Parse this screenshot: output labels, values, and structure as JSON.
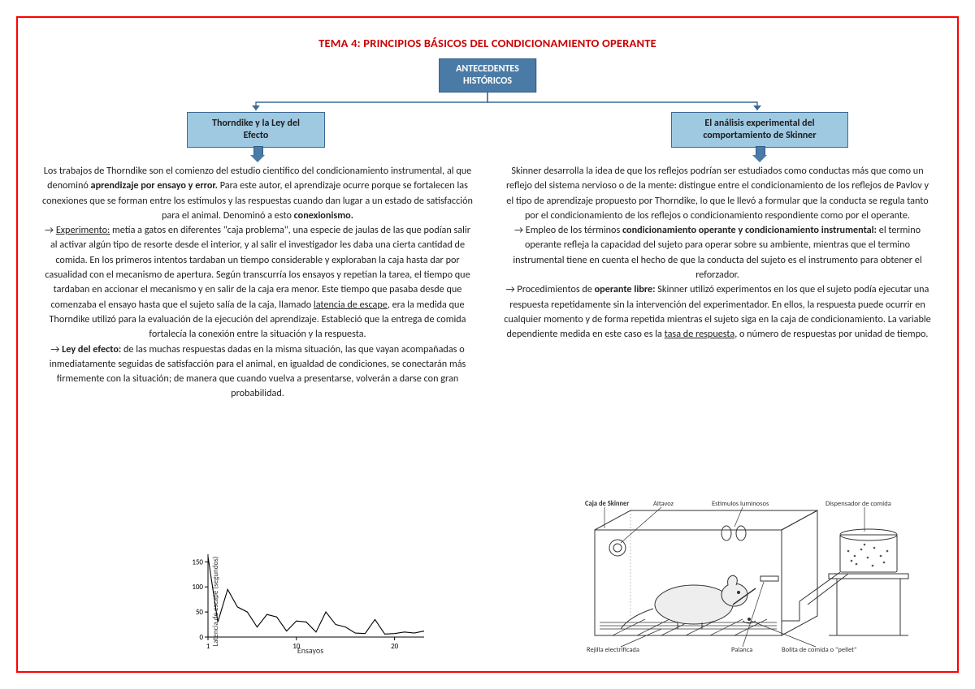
{
  "title": "TEMA 4: PRINCIPIOS BÁSICOS DEL CONDICIONAMIENTO OPERANTE",
  "colors": {
    "page_border": "#ff0000",
    "title": "#cc0000",
    "root_fill": "#4a7ba6",
    "root_border": "#2f5d87",
    "child_fill": "#9fc9e1",
    "child_border": "#3c6a94",
    "connector": "#3c6a94",
    "text": "#222222"
  },
  "diagram": {
    "root_line1": "ANTECEDENTES",
    "root_line2": "HISTÓRICOS",
    "left_line1": "Thorndike y la Ley del",
    "left_line2": "Efecto",
    "right_line1": "El análisis experimental del",
    "right_line2": "comportamiento de Skinner"
  },
  "left": {
    "p1a": "Los trabajos de Thorndike son el comienzo del estudio científico del condicionamiento instrumental, al que denominó ",
    "p1b_bold": "aprendizaje por ensayo y error.",
    "p1c": " Para este autor, el aprendizaje ocurre porque se fortalecen las conexiones que se forman entre los estímulos y las respuestas cuando dan lugar a un estado de satisfacción para el animal. Denominó a esto ",
    "p1d_bold": "conexionismo.",
    "p2_lead": "→ ",
    "p2_label_u": "Experimento:",
    "p2_body": " metía a gatos en diferentes \"caja problema\", una especie de jaulas de las que podían salir al activar algún tipo de resorte desde el interior, y al salir el investigador les daba una cierta cantidad de comida. En los primeros intentos tardaban un tiempo considerable y exploraban la caja hasta dar por casualidad con el mecanismo de apertura. Según transcurría los ensayos y repetían la tarea, el tiempo que tardaban en accionar el mecanismo y en salir de la caja era menor. Este tiempo que pasaba desde que comenzaba el ensayo hasta que el sujeto salía de la caja, llamado ",
    "p2_u2": "latencia de escape",
    "p2_tail": ", era la medida que Thorndike utilizó para la evaluación de la ejecución del aprendizaje. Estableció que la entrega de comida fortalecía la conexión entre la situación y la respuesta.",
    "p3_lead": "→ ",
    "p3_bold": "Ley del efecto:",
    "p3_body": " de las muchas respuestas dadas en la misma situación, las que vayan acompañadas o inmediatamente seguidas de satisfacción para el animal, en igualdad de condiciones, se conectarán más firmemente con la situación; de manera que cuando vuelva a presentarse, volverán a darse con gran probabilidad."
  },
  "right": {
    "p1": "Skinner desarrolla la idea de que los reflejos podrían ser estudiados como conductas más que como un reflejo del sistema nervioso o de la mente: distingue entre el condicionamiento de los reflejos de Pavlov y el tipo de aprendizaje propuesto por Thorndike, lo que le llevó a formular que la conducta se regula tanto por el condicionamiento de los reflejos o condicionamiento respondiente como por el operante.",
    "p2_lead": "→ Empleo de los términos ",
    "p2_bold": "condicionamiento operante y condicionamiento instrumental:",
    "p2_body": " el termino operante refleja la capacidad del sujeto para operar sobre su ambiente, mientras que el termino instrumental tiene en cuenta el hecho de que la conducta del sujeto es el instrumento para obtener el reforzador.",
    "p3_lead": "→ Procedimientos de ",
    "p3_bold": "operante libre:",
    "p3_body": " Skinner utilizó experimentos en los que el sujeto podía ejecutar una respuesta repetidamente sin la intervención del experimentador. En ellos, la respuesta puede ocurrir en cualquier momento y de forma repetida mientras el sujeto siga en la caja de condicionamiento. La variable dependiente medida en este caso es la ",
    "p3_u": "tasa de respuesta",
    "p3_tail": ", o número de respuestas por unidad de tiempo."
  },
  "chart": {
    "type": "line",
    "ylabel": "Latencia de escape (segundos)",
    "xlabel": "Ensayos",
    "xlim": [
      1,
      24
    ],
    "ylim": [
      0,
      165
    ],
    "yticks": [
      0,
      50,
      100,
      150
    ],
    "xticks": [
      1,
      10,
      20
    ],
    "line_color": "#000000",
    "line_width": 1.1,
    "background": "#ffffff",
    "points": [
      [
        1,
        160
      ],
      [
        2,
        30
      ],
      [
        3,
        95
      ],
      [
        4,
        60
      ],
      [
        5,
        50
      ],
      [
        6,
        20
      ],
      [
        7,
        45
      ],
      [
        8,
        40
      ],
      [
        9,
        12
      ],
      [
        10,
        32
      ],
      [
        11,
        30
      ],
      [
        12,
        10
      ],
      [
        13,
        50
      ],
      [
        14,
        25
      ],
      [
        15,
        20
      ],
      [
        16,
        8
      ],
      [
        17,
        7
      ],
      [
        18,
        35
      ],
      [
        19,
        6
      ],
      [
        20,
        7
      ],
      [
        21,
        10
      ],
      [
        22,
        8
      ],
      [
        23,
        12
      ],
      [
        24,
        7
      ]
    ]
  },
  "skinner": {
    "labels": {
      "box": "Caja de Skinner",
      "speaker": "Altavoz",
      "lights": "Estímulos luminosos",
      "dispenser": "Dispensador de comida",
      "grid": "Rejilla electrificada",
      "lever": "Palanca",
      "pellet": "Bolita de comida o \"pellet\""
    },
    "stroke": "#333333",
    "stroke_width": 1,
    "fill_none": "none"
  }
}
